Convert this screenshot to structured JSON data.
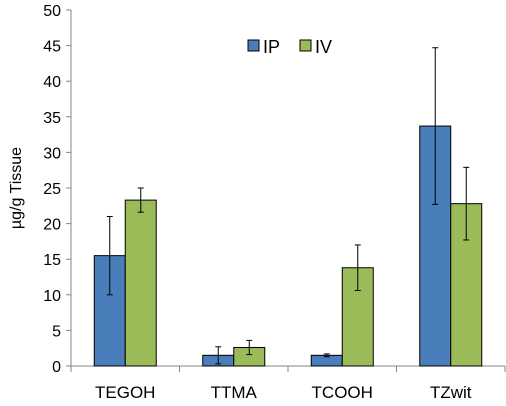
{
  "chart_data": {
    "type": "bar",
    "title": "",
    "xlabel": "",
    "ylabel": "µg/g Tissue",
    "ylim": [
      0,
      50
    ],
    "yticks": [
      0,
      5,
      10,
      15,
      20,
      25,
      30,
      35,
      40,
      45,
      50
    ],
    "grid": false,
    "legend_position": "top-center",
    "categories": [
      "TEGOH",
      "TTMA",
      "TCOOH",
      "TZwit"
    ],
    "series": [
      {
        "name": "IP",
        "color": "#4a7ebb",
        "values": [
          15.5,
          1.5,
          1.5,
          33.7
        ],
        "error": [
          5.5,
          1.2,
          0.2,
          11.0
        ]
      },
      {
        "name": "IV",
        "color": "#9bbb59",
        "values": [
          23.3,
          2.6,
          13.8,
          22.8
        ],
        "error": [
          1.7,
          1.0,
          3.2,
          5.1
        ]
      }
    ]
  }
}
